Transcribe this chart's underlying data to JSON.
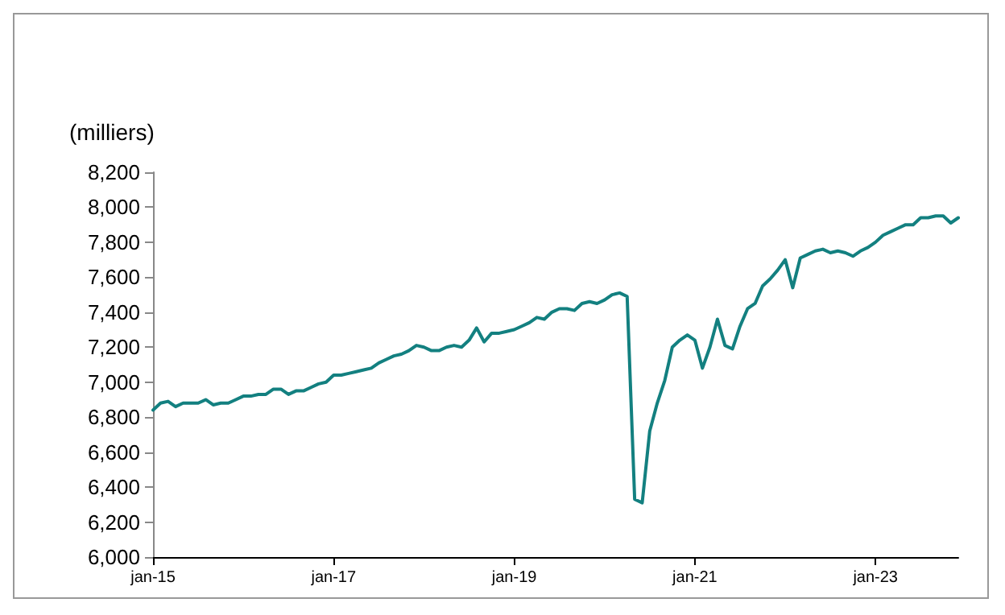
{
  "chart_data": {
    "type": "line",
    "ylabel": "(milliers)",
    "categories": [
      "jan-15",
      null,
      null,
      null,
      null,
      null,
      null,
      null,
      null,
      null,
      null,
      null,
      null,
      null,
      null,
      null,
      null,
      null,
      null,
      null,
      null,
      null,
      null,
      null,
      "jan-17",
      null,
      null,
      null,
      null,
      null,
      null,
      null,
      null,
      null,
      null,
      null,
      null,
      null,
      null,
      null,
      null,
      null,
      null,
      null,
      null,
      null,
      null,
      null,
      "jan-19",
      null,
      null,
      null,
      null,
      null,
      null,
      null,
      null,
      null,
      null,
      null,
      null,
      null,
      null,
      null,
      null,
      null,
      null,
      null,
      null,
      null,
      null,
      null,
      "jan-21",
      null,
      null,
      null,
      null,
      null,
      null,
      null,
      null,
      null,
      null,
      null,
      null,
      null,
      null,
      null,
      null,
      null,
      null,
      null,
      null,
      null,
      null,
      null,
      "jan-23",
      null,
      null,
      null,
      null,
      null,
      null,
      null,
      null,
      null,
      null,
      null
    ],
    "series": [
      {
        "color": "#138080",
        "values": [
          6840,
          6880,
          6890,
          6860,
          6880,
          6880,
          6880,
          6900,
          6870,
          6880,
          6880,
          6900,
          6920,
          6920,
          6930,
          6930,
          6960,
          6960,
          6930,
          6950,
          6950,
          6970,
          6990,
          7000,
          7040,
          7040,
          7050,
          7060,
          7070,
          7080,
          7110,
          7130,
          7150,
          7160,
          7180,
          7210,
          7200,
          7180,
          7180,
          7200,
          7210,
          7200,
          7240,
          7310,
          7230,
          7280,
          7280,
          7290,
          7300,
          7320,
          7340,
          7370,
          7360,
          7400,
          7420,
          7420,
          7410,
          7450,
          7460,
          7450,
          7470,
          7500,
          7510,
          7490,
          6330,
          6310,
          6720,
          6880,
          7010,
          7200,
          7240,
          7270,
          7240,
          7080,
          7200,
          7360,
          7210,
          7190,
          7320,
          7420,
          7450,
          7550,
          7590,
          7640,
          7700,
          7540,
          7710,
          7730,
          7750,
          7760,
          7740,
          7750,
          7740,
          7720,
          7750,
          7770,
          7800,
          7840,
          7860,
          7880,
          7900,
          7900,
          7940,
          7940,
          7950,
          7950,
          7910,
          7940
        ]
      }
    ],
    "ylim": [
      6000,
      8200
    ],
    "yticks": [
      {
        "value": 6000,
        "label": "6,000"
      },
      {
        "value": 6200,
        "label": "6,200"
      },
      {
        "value": 6400,
        "label": "6,400"
      },
      {
        "value": 6600,
        "label": "6,600"
      },
      {
        "value": 6800,
        "label": "6,800"
      },
      {
        "value": 7000,
        "label": "7,000"
      },
      {
        "value": 7200,
        "label": "7,200"
      },
      {
        "value": 7400,
        "label": "7,400"
      },
      {
        "value": 7600,
        "label": "7,600"
      },
      {
        "value": 7800,
        "label": "7,800"
      },
      {
        "value": 8000,
        "label": "8,000"
      },
      {
        "value": 8200,
        "label": "8,200"
      }
    ],
    "grid": false,
    "marker": "none",
    "line_style": "solid"
  }
}
